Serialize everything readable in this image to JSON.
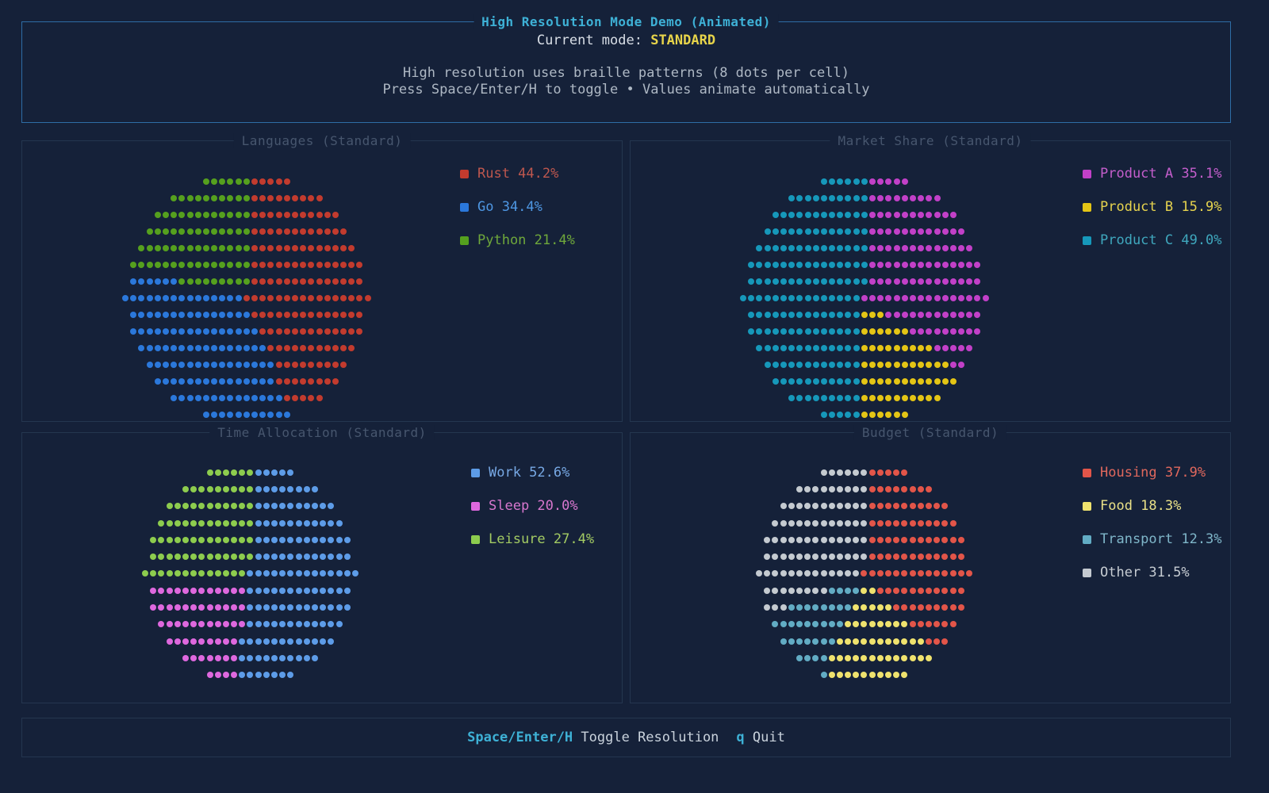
{
  "header": {
    "title": "High Resolution Mode Demo (Animated)",
    "mode_label": "Current mode: ",
    "mode_value": "STANDARD",
    "info_line1": "High resolution uses braille patterns (8 dots per cell)",
    "info_line2": "Press Space/Enter/H to toggle • Values animate automatically"
  },
  "footer": {
    "keys_toggle": "Space/Enter/H",
    "action_toggle": "Toggle Resolution",
    "keys_quit": "q",
    "action_quit": "Quit"
  },
  "panels": [
    {
      "title": "Languages (Standard)",
      "rows": 15,
      "slices": [
        {
          "label": "Rust",
          "pct": "44.2%",
          "value": 44.2,
          "color": "#C23B2E",
          "text": "#BE574E"
        },
        {
          "label": "Go",
          "pct": "34.4%",
          "value": 34.4,
          "color": "#2B78DB",
          "text": "#4E97E3"
        },
        {
          "label": "Python",
          "pct": "21.4%",
          "value": 21.4,
          "color": "#55A01E",
          "text": "#6FA83B"
        }
      ]
    },
    {
      "title": "Market Share (Standard)",
      "rows": 15,
      "slices": [
        {
          "label": "Product A",
          "pct": "35.1%",
          "value": 35.1,
          "color": "#C240C8",
          "text": "#C45ECC"
        },
        {
          "label": "Product B",
          "pct": "15.9%",
          "value": 15.9,
          "color": "#E4C515",
          "text": "#E6D34E"
        },
        {
          "label": "Product C",
          "pct": "49.0%",
          "value": 49.0,
          "color": "#1698BA",
          "text": "#3FA7BD"
        }
      ]
    },
    {
      "title": "Time Allocation (Standard)",
      "rows": 13,
      "slices": [
        {
          "label": "Work",
          "pct": "52.6%",
          "value": 52.6,
          "color": "#5D9CE8",
          "text": "#77A8E4"
        },
        {
          "label": "Sleep",
          "pct": "20.0%",
          "value": 20.0,
          "color": "#DE68DE",
          "text": "#D877CE"
        },
        {
          "label": "Leisure",
          "pct": "27.4%",
          "value": 27.4,
          "color": "#8DCC4E",
          "text": "#A3CB63"
        }
      ]
    },
    {
      "title": "Budget (Standard)",
      "rows": 13,
      "slices": [
        {
          "label": "Housing",
          "pct": "37.9%",
          "value": 37.9,
          "color": "#E25549",
          "text": "#E0685D"
        },
        {
          "label": "Food",
          "pct": "18.3%",
          "value": 18.3,
          "color": "#EFE26E",
          "text": "#E9E087"
        },
        {
          "label": "Transport",
          "pct": "12.3%",
          "value": 12.3,
          "color": "#62ACC4",
          "text": "#7FB6C9"
        },
        {
          "label": "Other",
          "pct": "31.5%",
          "value": 31.5,
          "color": "#C4CAD0",
          "text": "#C6CCD2"
        }
      ]
    }
  ],
  "chart_data": [
    {
      "type": "pie",
      "title": "Languages (Standard)",
      "labels": [
        "Rust",
        "Go",
        "Python"
      ],
      "values": [
        44.2,
        34.4,
        21.4
      ],
      "colors": [
        "#C23B2E",
        "#2B78DB",
        "#55A01E"
      ],
      "legend_position": "right"
    },
    {
      "type": "pie",
      "title": "Market Share (Standard)",
      "labels": [
        "Product A",
        "Product B",
        "Product C"
      ],
      "values": [
        35.1,
        15.9,
        49.0
      ],
      "colors": [
        "#C240C8",
        "#E4C515",
        "#1698BA"
      ],
      "legend_position": "right"
    },
    {
      "type": "pie",
      "title": "Time Allocation (Standard)",
      "labels": [
        "Work",
        "Sleep",
        "Leisure"
      ],
      "values": [
        52.6,
        20.0,
        27.4
      ],
      "colors": [
        "#5D9CE8",
        "#DE68DE",
        "#8DCC4E"
      ],
      "legend_position": "right"
    },
    {
      "type": "pie",
      "title": "Budget (Standard)",
      "labels": [
        "Housing",
        "Food",
        "Transport",
        "Other"
      ],
      "values": [
        37.9,
        18.3,
        12.3,
        31.5
      ],
      "colors": [
        "#E25549",
        "#EFE26E",
        "#62ACC4",
        "#C4CAD0"
      ],
      "legend_position": "right"
    }
  ]
}
